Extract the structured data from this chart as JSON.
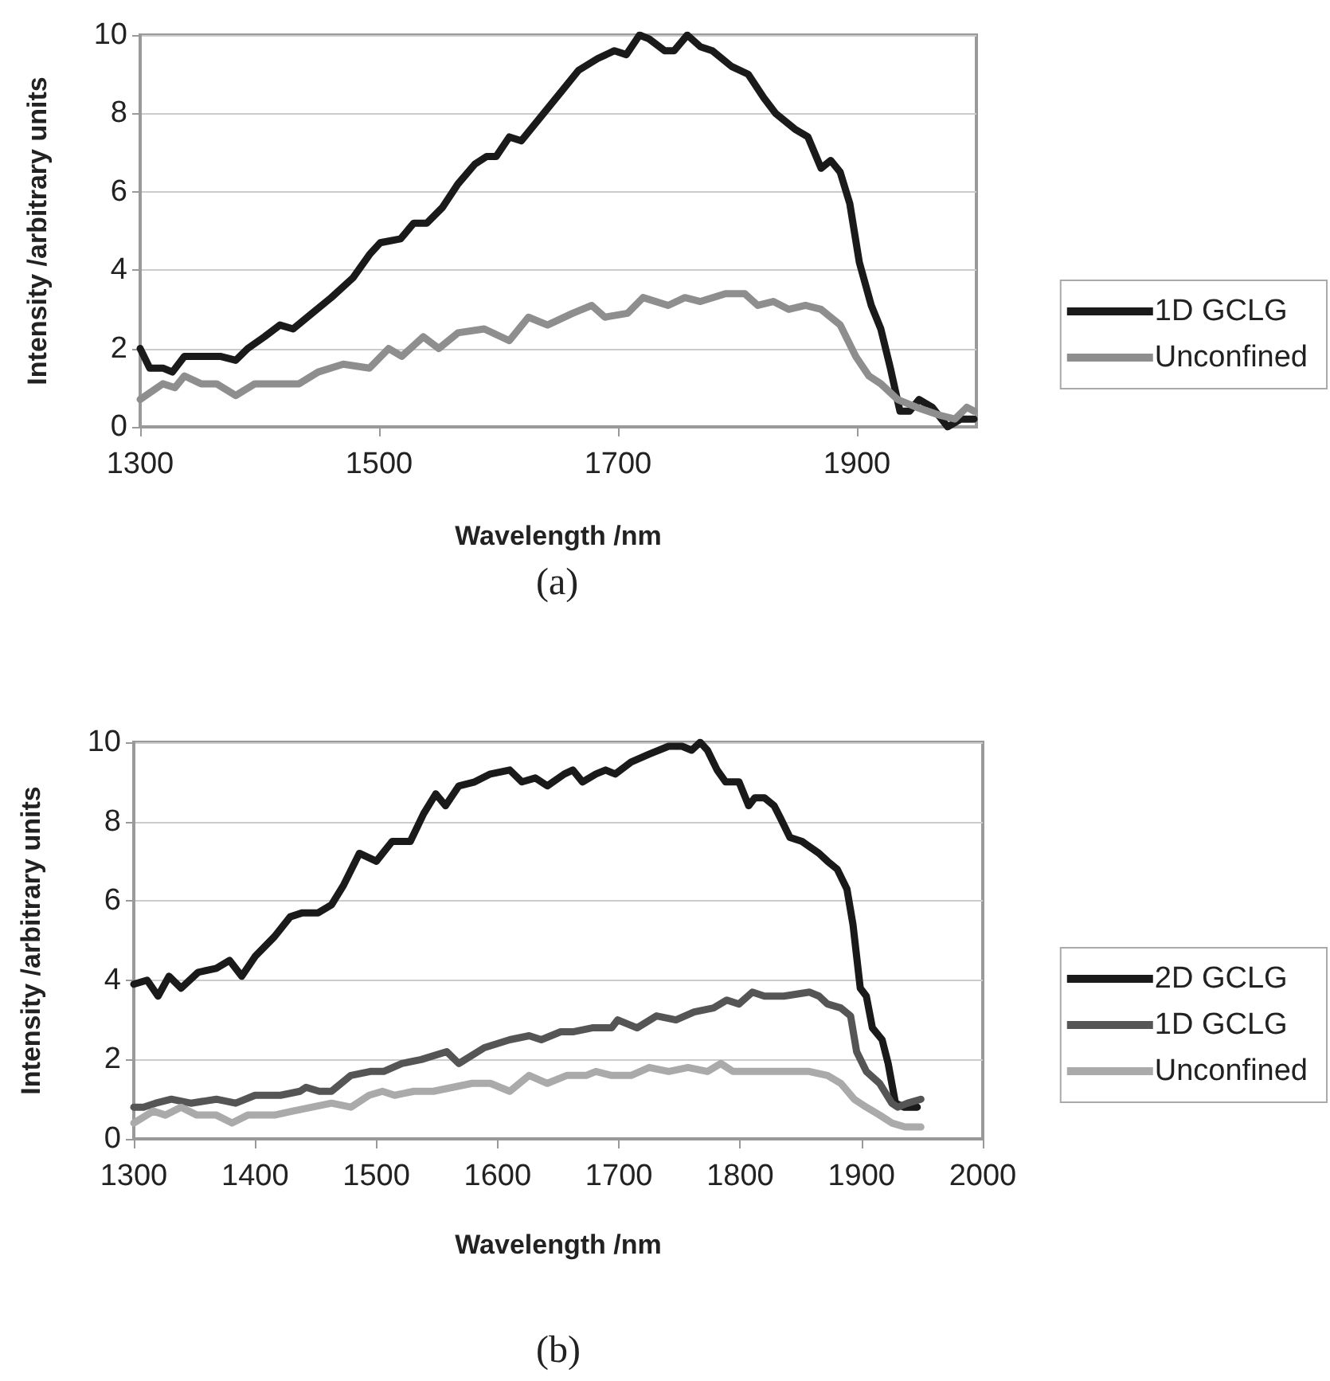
{
  "chart_data": [
    {
      "type": "line",
      "xlabel": "Wavelength /nm",
      "ylabel": "Intensity /arbitrary units",
      "annotations": [
        "(a)"
      ],
      "xlim": [
        1300,
        2000
      ],
      "xticks": [
        1300,
        1500,
        1700,
        1900
      ],
      "ylim": [
        0,
        10
      ],
      "yticks": [
        0,
        2,
        4,
        6,
        8,
        10
      ],
      "grid": "y",
      "legend": "right",
      "marker": "none",
      "line_style": "solid",
      "series": [
        {
          "name": "1D GCLG",
          "color": "#1a1a1a",
          "x": [
            1300,
            1308,
            1319,
            1327,
            1337,
            1367,
            1380,
            1390,
            1404,
            1417,
            1428,
            1444,
            1460,
            1478,
            1492,
            1501,
            1518,
            1529,
            1540,
            1553,
            1566,
            1580,
            1590,
            1598,
            1609,
            1619,
            1635,
            1651,
            1667,
            1683,
            1697,
            1707,
            1718,
            1726,
            1739,
            1747,
            1758,
            1769,
            1779,
            1795,
            1809,
            1822,
            1832,
            1848,
            1859,
            1870,
            1878,
            1886,
            1894,
            1902,
            1912,
            1920,
            1928,
            1936,
            1944,
            1952,
            1963,
            1976,
            1987,
            1998
          ],
          "values": [
            2.0,
            1.5,
            1.5,
            1.4,
            1.8,
            1.8,
            1.7,
            2.0,
            2.3,
            2.6,
            2.5,
            2.9,
            3.3,
            3.8,
            4.4,
            4.7,
            4.8,
            5.2,
            5.2,
            5.6,
            6.2,
            6.7,
            6.9,
            6.9,
            7.4,
            7.3,
            7.9,
            8.5,
            9.1,
            9.4,
            9.6,
            9.5,
            10.0,
            9.9,
            9.6,
            9.6,
            10.0,
            9.7,
            9.6,
            9.2,
            9.0,
            8.4,
            8.0,
            7.6,
            7.4,
            6.6,
            6.8,
            6.5,
            5.7,
            4.2,
            3.1,
            2.5,
            1.5,
            0.4,
            0.4,
            0.7,
            0.5,
            0.0,
            0.2,
            0.2
          ]
        },
        {
          "name": "Unconfined",
          "color": "#8e8e8e",
          "x": [
            1300,
            1319,
            1329,
            1337,
            1351,
            1364,
            1380,
            1396,
            1412,
            1433,
            1449,
            1470,
            1492,
            1508,
            1519,
            1537,
            1550,
            1566,
            1588,
            1609,
            1625,
            1641,
            1662,
            1678,
            1689,
            1708,
            1721,
            1742,
            1756,
            1769,
            1790,
            1806,
            1817,
            1830,
            1843,
            1857,
            1870,
            1886,
            1899,
            1910,
            1920,
            1934,
            1950,
            1969,
            1982,
            1992,
            1998
          ],
          "values": [
            0.7,
            1.1,
            1.0,
            1.3,
            1.1,
            1.1,
            0.8,
            1.1,
            1.1,
            1.1,
            1.4,
            1.6,
            1.5,
            2.0,
            1.8,
            2.3,
            2.0,
            2.4,
            2.5,
            2.2,
            2.8,
            2.6,
            2.9,
            3.1,
            2.8,
            2.9,
            3.3,
            3.1,
            3.3,
            3.2,
            3.4,
            3.4,
            3.1,
            3.2,
            3.0,
            3.1,
            3.0,
            2.6,
            1.8,
            1.3,
            1.1,
            0.7,
            0.5,
            0.3,
            0.2,
            0.5,
            0.4
          ]
        }
      ]
    },
    {
      "type": "line",
      "xlabel": "Wavelength /nm",
      "ylabel": "Intensity /arbitrary units",
      "annotations": [
        "(b)"
      ],
      "xlim": [
        1300,
        2000
      ],
      "xticks": [
        1300,
        1400,
        1500,
        1600,
        1700,
        1800,
        1900,
        2000
      ],
      "ylim": [
        0,
        10
      ],
      "yticks": [
        0,
        2,
        4,
        6,
        8,
        10
      ],
      "grid": "y",
      "legend": "right",
      "marker": "none",
      "line_style": "solid",
      "series": [
        {
          "name": "2D GCLG",
          "color": "#1a1a1a",
          "x": [
            1300,
            1311,
            1320,
            1329,
            1339,
            1353,
            1368,
            1379,
            1389,
            1400,
            1416,
            1429,
            1439,
            1452,
            1463,
            1473,
            1486,
            1500,
            1513,
            1528,
            1539,
            1549,
            1557,
            1568,
            1581,
            1594,
            1610,
            1620,
            1631,
            1641,
            1655,
            1662,
            1670,
            1681,
            1689,
            1697,
            1710,
            1725,
            1741,
            1752,
            1760,
            1767,
            1773,
            1781,
            1788,
            1799,
            1807,
            1812,
            1820,
            1828,
            1833,
            1841,
            1851,
            1865,
            1872,
            1880,
            1888,
            1893,
            1899,
            1904,
            1909,
            1917,
            1922,
            1928,
            1935,
            1946
          ],
          "values": [
            3.9,
            4.0,
            3.6,
            4.1,
            3.8,
            4.2,
            4.3,
            4.5,
            4.1,
            4.6,
            5.1,
            5.6,
            5.7,
            5.7,
            5.9,
            6.4,
            7.2,
            7.0,
            7.5,
            7.5,
            8.2,
            8.7,
            8.4,
            8.9,
            9.0,
            9.2,
            9.3,
            9.0,
            9.1,
            8.9,
            9.2,
            9.3,
            9.0,
            9.2,
            9.3,
            9.2,
            9.5,
            9.7,
            9.9,
            9.9,
            9.8,
            10.0,
            9.8,
            9.3,
            9.0,
            9.0,
            8.4,
            8.6,
            8.6,
            8.4,
            8.1,
            7.6,
            7.5,
            7.2,
            7.0,
            6.8,
            6.3,
            5.4,
            3.8,
            3.6,
            2.8,
            2.5,
            1.9,
            0.9,
            0.8,
            0.8
          ]
        },
        {
          "name": "1D GCLG",
          "color": "#555555",
          "x": [
            1300,
            1308,
            1318,
            1331,
            1347,
            1368,
            1384,
            1400,
            1421,
            1437,
            1442,
            1453,
            1463,
            1479,
            1495,
            1506,
            1521,
            1537,
            1558,
            1568,
            1589,
            1610,
            1626,
            1636,
            1652,
            1662,
            1678,
            1694,
            1699,
            1715,
            1731,
            1747,
            1762,
            1778,
            1789,
            1799,
            1810,
            1820,
            1836,
            1857,
            1865,
            1872,
            1883,
            1891,
            1896,
            1904,
            1915,
            1925,
            1930,
            1938,
            1949
          ],
          "values": [
            0.8,
            0.8,
            0.9,
            1.0,
            0.9,
            1.0,
            0.9,
            1.1,
            1.1,
            1.2,
            1.3,
            1.2,
            1.2,
            1.6,
            1.7,
            1.7,
            1.9,
            2.0,
            2.2,
            1.9,
            2.3,
            2.5,
            2.6,
            2.5,
            2.7,
            2.7,
            2.8,
            2.8,
            3.0,
            2.8,
            3.1,
            3.0,
            3.2,
            3.3,
            3.5,
            3.4,
            3.7,
            3.6,
            3.6,
            3.7,
            3.6,
            3.4,
            3.3,
            3.1,
            2.2,
            1.7,
            1.4,
            0.9,
            0.8,
            0.9,
            1.0
          ]
        },
        {
          "name": "Unconfined",
          "color": "#aaaaaa",
          "x": [
            1300,
            1316,
            1326,
            1339,
            1352,
            1368,
            1381,
            1394,
            1416,
            1431,
            1447,
            1463,
            1479,
            1494,
            1505,
            1515,
            1531,
            1547,
            1563,
            1579,
            1594,
            1610,
            1626,
            1641,
            1657,
            1673,
            1681,
            1694,
            1710,
            1725,
            1741,
            1757,
            1773,
            1784,
            1794,
            1810,
            1826,
            1841,
            1857,
            1872,
            1883,
            1894,
            1904,
            1915,
            1925,
            1936,
            1949
          ],
          "values": [
            0.4,
            0.7,
            0.6,
            0.8,
            0.6,
            0.6,
            0.4,
            0.6,
            0.6,
            0.7,
            0.8,
            0.9,
            0.8,
            1.1,
            1.2,
            1.1,
            1.2,
            1.2,
            1.3,
            1.4,
            1.4,
            1.2,
            1.6,
            1.4,
            1.6,
            1.6,
            1.7,
            1.6,
            1.6,
            1.8,
            1.7,
            1.8,
            1.7,
            1.9,
            1.7,
            1.7,
            1.7,
            1.7,
            1.7,
            1.6,
            1.4,
            1.0,
            0.8,
            0.6,
            0.4,
            0.3,
            0.3
          ]
        }
      ]
    }
  ]
}
